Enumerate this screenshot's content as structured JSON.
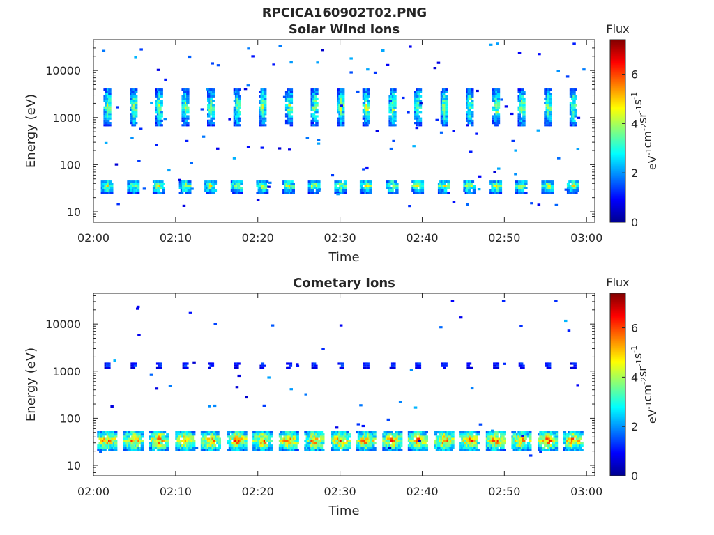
{
  "figure_title": "RPCICA160902T02.PNG",
  "colormap": [
    "#00008f",
    "#0000ff",
    "#0080ff",
    "#00ffff",
    "#80ff80",
    "#ffff00",
    "#ff8000",
    "#ff0000",
    "#800000"
  ],
  "chart_data": [
    {
      "type": "heatmap",
      "title": "Solar Wind Ions",
      "xlabel": "Time",
      "ylabel": "Energy (eV)",
      "yscale": "log",
      "ylim": [
        6,
        45000
      ],
      "xlim": [
        "02:00",
        "03:01"
      ],
      "x_ticks": [
        "02:00",
        "02:10",
        "02:20",
        "02:30",
        "02:40",
        "02:50",
        "03:00"
      ],
      "y_ticks": [
        {
          "value": 10,
          "label": "10"
        },
        {
          "value": 100,
          "label": "100"
        },
        {
          "value": 1000,
          "label": "1000"
        },
        {
          "value": 10000,
          "label": "10000"
        }
      ],
      "colorbar": {
        "label": "Flux",
        "units": "eV-1cm-2sr-1s-1",
        "range": [
          0,
          7.4
        ],
        "ticks": [
          "0",
          "2",
          "4",
          "6"
        ]
      },
      "pattern": "Periodic ion bursts every ~3.2 min; main band near 1000-3000 eV, secondary band near 25-45 eV",
      "bursts_minutes": [
        1.6,
        4.8,
        7.9,
        11.1,
        14.2,
        17.4,
        20.5,
        23.7,
        26.8,
        30.0,
        33.1,
        36.3,
        39.4,
        42.6,
        45.7,
        48.9,
        52.0,
        55.2,
        58.3
      ],
      "main_band": {
        "energy_low_eV": 650,
        "energy_high_eV": 4000,
        "peak_flux": 4.6
      },
      "low_band": {
        "energy_low_eV": 24,
        "energy_high_eV": 46,
        "peak_flux": 5.0
      }
    },
    {
      "type": "heatmap",
      "title": "Cometary Ions",
      "xlabel": "Time",
      "ylabel": "Energy (eV)",
      "yscale": "log",
      "ylim": [
        6,
        45000
      ],
      "xlim": [
        "02:00",
        "03:01"
      ],
      "x_ticks": [
        "02:00",
        "02:10",
        "02:20",
        "02:30",
        "02:40",
        "02:50",
        "03:00"
      ],
      "y_ticks": [
        {
          "value": 10,
          "label": "10"
        },
        {
          "value": 100,
          "label": "100"
        },
        {
          "value": 1000,
          "label": "1000"
        },
        {
          "value": 10000,
          "label": "10000"
        }
      ],
      "colorbar": {
        "label": "Flux",
        "units": "eV-1cm-2sr-1s-1",
        "range": [
          0,
          7.4
        ],
        "ticks": [
          "0",
          "2",
          "4",
          "6"
        ]
      },
      "pattern": "Periodic bursts every ~3.2 min; weak band near 1100-1500 eV, strong band near 20-50 eV",
      "bursts_minutes": [
        1.6,
        4.8,
        7.9,
        11.1,
        14.2,
        17.4,
        20.5,
        23.7,
        26.8,
        30.0,
        33.1,
        36.3,
        39.4,
        42.6,
        45.7,
        48.9,
        52.0,
        55.2,
        58.3
      ],
      "main_band": {
        "energy_low_eV": 1100,
        "energy_high_eV": 1500,
        "peak_flux": 2.0
      },
      "low_band": {
        "energy_low_eV": 20,
        "energy_high_eV": 50,
        "peak_flux": 6.6
      }
    }
  ]
}
